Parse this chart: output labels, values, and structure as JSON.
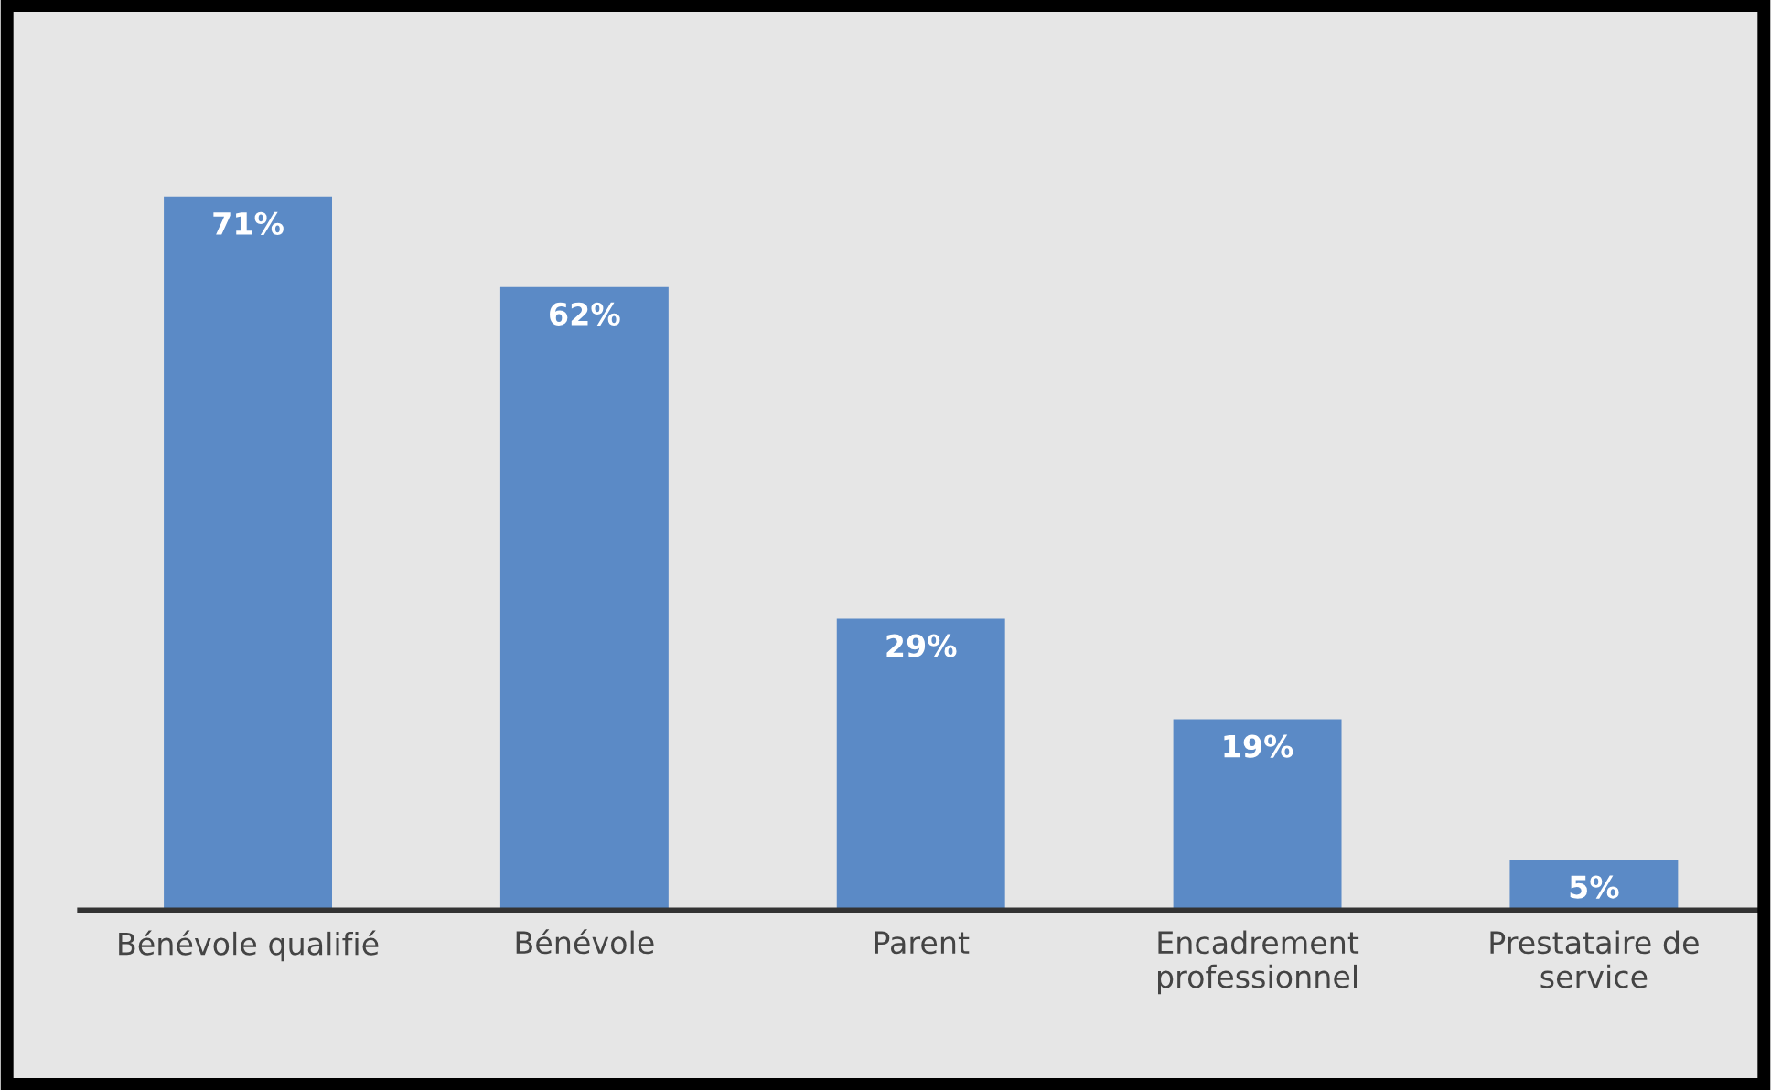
{
  "chart_data": {
    "type": "bar",
    "categories": [
      "Bénévole qualifié",
      "Bénévole",
      "Parent",
      "Encadrement\nprofessionnel",
      "Prestataire de\nservice"
    ],
    "values": [
      71,
      62,
      29,
      19,
      5
    ],
    "value_labels": [
      "71%",
      "62%",
      "29%",
      "19%",
      "5%"
    ],
    "color": "#5b8ac6",
    "grid": false,
    "legend": false
  }
}
